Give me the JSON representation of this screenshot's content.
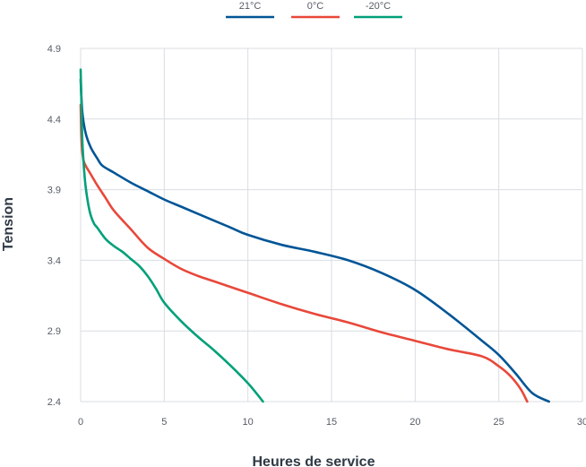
{
  "chart_data": {
    "type": "line",
    "title": "",
    "xlabel": "Heures de service",
    "ylabel": "Tension",
    "xlim": [
      0,
      30
    ],
    "ylim": [
      2.4,
      4.9
    ],
    "x_ticks": [
      0,
      5,
      10,
      15,
      20,
      25,
      30
    ],
    "y_ticks": [
      2.4,
      2.9,
      3.4,
      3.9,
      4.4,
      4.9
    ],
    "x_tick_labels": [
      "0",
      "5",
      "10",
      "15",
      "20",
      "25",
      "30"
    ],
    "y_tick_labels": [
      "2.4",
      "2.9",
      "3.4",
      "3.9",
      "4.4",
      "4.9"
    ],
    "grid": true,
    "legend_position": "top-center",
    "series": [
      {
        "name": "21°C",
        "color": "#005596",
        "x": [
          0,
          0.1,
          0.3,
          0.6,
          1.0,
          1.3,
          2,
          3,
          4,
          5,
          6,
          7,
          8,
          9,
          10,
          12,
          14,
          16,
          18,
          20,
          22,
          24,
          25,
          26,
          27,
          28
        ],
        "y": [
          4.68,
          4.45,
          4.3,
          4.2,
          4.12,
          4.07,
          4.02,
          3.95,
          3.89,
          3.83,
          3.78,
          3.73,
          3.68,
          3.63,
          3.58,
          3.51,
          3.46,
          3.4,
          3.31,
          3.19,
          3.02,
          2.83,
          2.73,
          2.6,
          2.46,
          2.4
        ]
      },
      {
        "name": "0°C",
        "color": "#e8483a",
        "x": [
          0,
          0.05,
          0.15,
          0.3,
          0.6,
          1.0,
          1.5,
          2,
          3,
          4,
          5,
          6,
          7,
          8,
          10,
          12,
          14,
          16,
          18,
          20,
          22,
          24,
          25,
          25.7,
          26.3,
          26.7
        ],
        "y": [
          4.5,
          4.25,
          4.12,
          4.07,
          4.01,
          3.93,
          3.84,
          3.75,
          3.62,
          3.49,
          3.41,
          3.34,
          3.29,
          3.25,
          3.17,
          3.09,
          3.02,
          2.96,
          2.89,
          2.83,
          2.77,
          2.72,
          2.65,
          2.58,
          2.49,
          2.4
        ]
      },
      {
        "name": "-20°C",
        "color": "#00a07a",
        "x": [
          0,
          0.05,
          0.1,
          0.2,
          0.3,
          0.45,
          0.6,
          0.8,
          1.0,
          1.5,
          2,
          2.5,
          3,
          3.5,
          4,
          4.5,
          5,
          6,
          7,
          8,
          9,
          10,
          10.5,
          10.9
        ],
        "y": [
          4.75,
          4.5,
          4.25,
          4.05,
          3.92,
          3.8,
          3.72,
          3.66,
          3.63,
          3.55,
          3.5,
          3.46,
          3.41,
          3.36,
          3.29,
          3.2,
          3.1,
          2.97,
          2.86,
          2.76,
          2.65,
          2.53,
          2.46,
          2.4
        ]
      }
    ]
  }
}
